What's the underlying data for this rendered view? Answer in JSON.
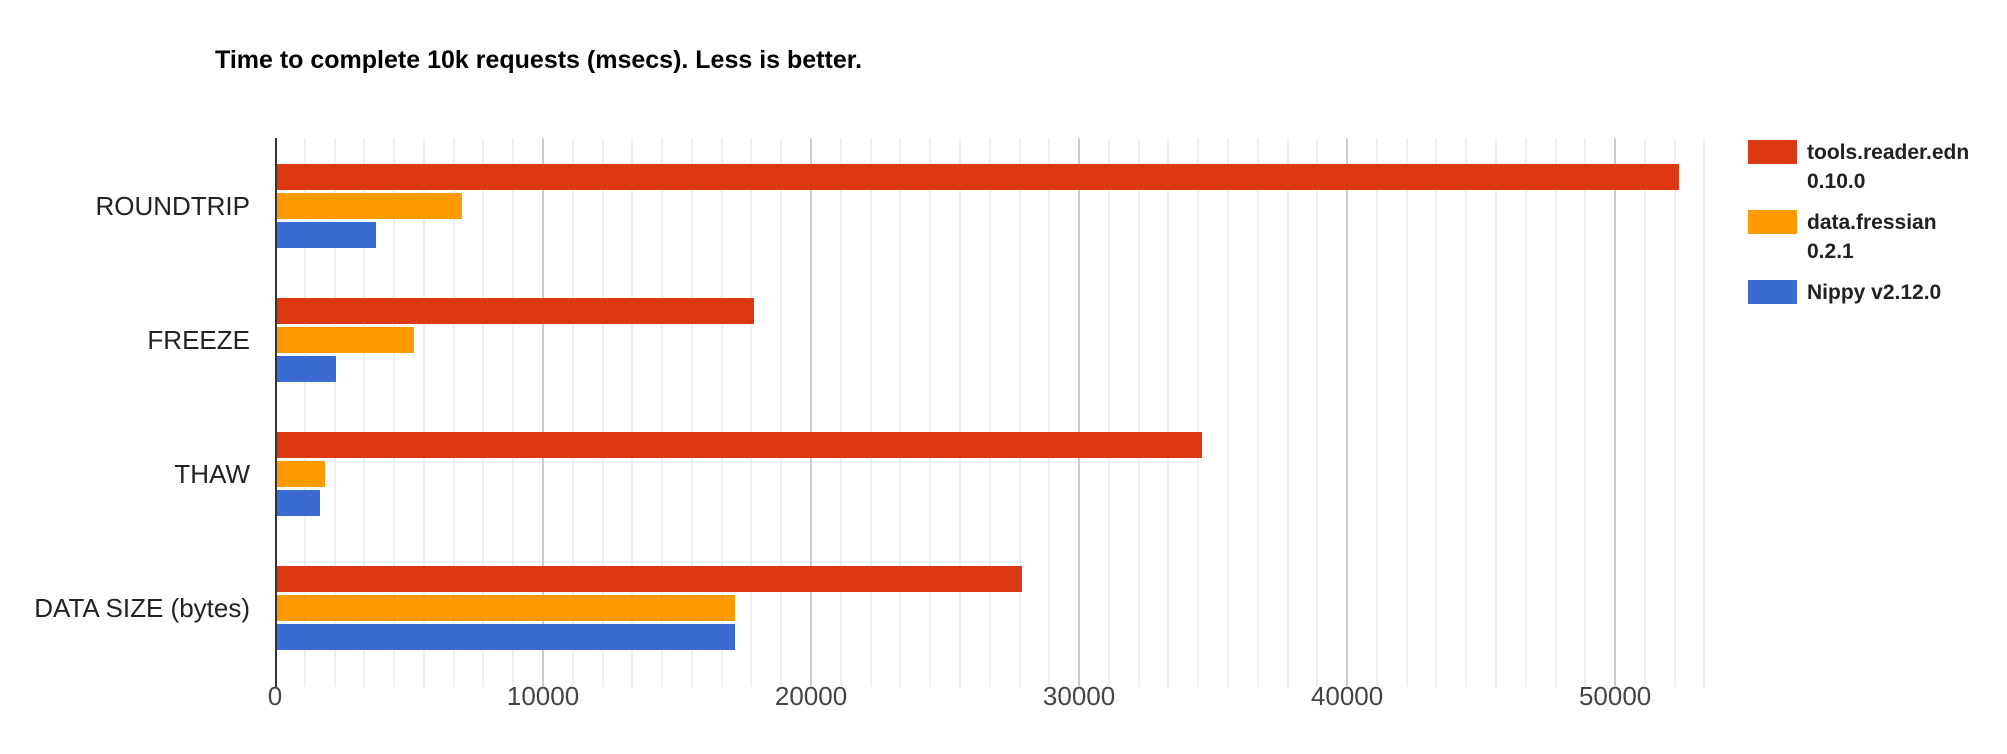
{
  "title": "Time to complete 10k requests (msecs). Less is better.",
  "chart_data": {
    "type": "bar",
    "orientation": "horizontal",
    "title": "Time to complete 10k requests (msecs). Less is better.",
    "categories": [
      "ROUNDTRIP",
      "FREEZE",
      "THAW",
      "DATA SIZE (bytes)"
    ],
    "series": [
      {
        "name": "tools.reader.edn 0.10.0",
        "color": "#dc3912",
        "values": [
          52300,
          17800,
          34500,
          27800
        ]
      },
      {
        "name": "data.fressian 0.2.1",
        "color": "#ff9900",
        "values": [
          6900,
          5100,
          1800,
          17100
        ]
      },
      {
        "name": "Nippy v2.12.0",
        "color": "#3a6bd2",
        "values": [
          3700,
          2200,
          1600,
          17100
        ]
      }
    ],
    "xlabel": "",
    "ylabel": "",
    "x_ticks": [
      0,
      10000,
      20000,
      30000,
      40000,
      50000
    ],
    "x_tick_labels": [
      "0",
      "10000",
      "20000",
      "30000",
      "40000",
      "50000"
    ],
    "xlim": [
      0,
      54100
    ],
    "minor_subdivisions_per_major": 9,
    "grid": true,
    "legend_position": "right",
    "legend": [
      {
        "label_lines": [
          "tools.reader.edn",
          "0.10.0"
        ],
        "color": "#dc3912"
      },
      {
        "label_lines": [
          "data.fressian",
          "0.2.1"
        ],
        "color": "#ff9900"
      },
      {
        "label_lines": [
          "Nippy v2.12.0"
        ],
        "color": "#3a6bd2"
      }
    ],
    "colors": {
      "baseline": "#333333",
      "major_gridline": "#cccccc",
      "minor_gridline": "#efefef",
      "axis_text": "#444444",
      "category_text": "#222222",
      "title_text": "#000000"
    }
  }
}
